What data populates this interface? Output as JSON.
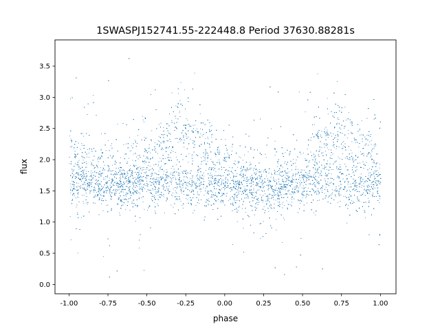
{
  "chart_data": {
    "type": "scatter",
    "title": "1SWASPJ152741.55-222448.8 Period 37630.88281s",
    "xlabel": "phase",
    "ylabel": "flux",
    "xlim": [
      -1.09,
      1.1
    ],
    "ylim": [
      -0.15,
      3.92
    ],
    "xticks": [
      "-1.00",
      "-0.75",
      "-0.50",
      "-0.25",
      "0.00",
      "0.25",
      "0.50",
      "0.75",
      "1.00"
    ],
    "xtick_values": [
      -1.0,
      -0.75,
      -0.5,
      -0.25,
      0.0,
      0.25,
      0.5,
      0.75,
      1.0
    ],
    "yticks": [
      "0.0",
      "0.5",
      "1.0",
      "1.5",
      "2.0",
      "2.5",
      "3.0",
      "3.5"
    ],
    "ytick_values": [
      0.0,
      0.5,
      1.0,
      1.5,
      2.0,
      2.5,
      3.0,
      3.5
    ],
    "grid": false,
    "marker_color": "#1f77b4",
    "x_range_of_points": [
      -1.0,
      1.0
    ],
    "trend_phase": [
      -1.0,
      -0.75,
      -0.5,
      -0.3,
      -0.1,
      0.0,
      0.25,
      0.5,
      0.7,
      0.9,
      1.0
    ],
    "upper_branch_flux": [
      1.95,
      1.7,
      1.9,
      2.4,
      2.1,
      1.85,
      1.5,
      1.8,
      2.4,
      2.15,
      2.0
    ],
    "lower_branch_flux": [
      1.6,
      1.55,
      1.6,
      1.6,
      1.55,
      1.55,
      1.55,
      1.6,
      1.6,
      1.55,
      1.6
    ]
  }
}
